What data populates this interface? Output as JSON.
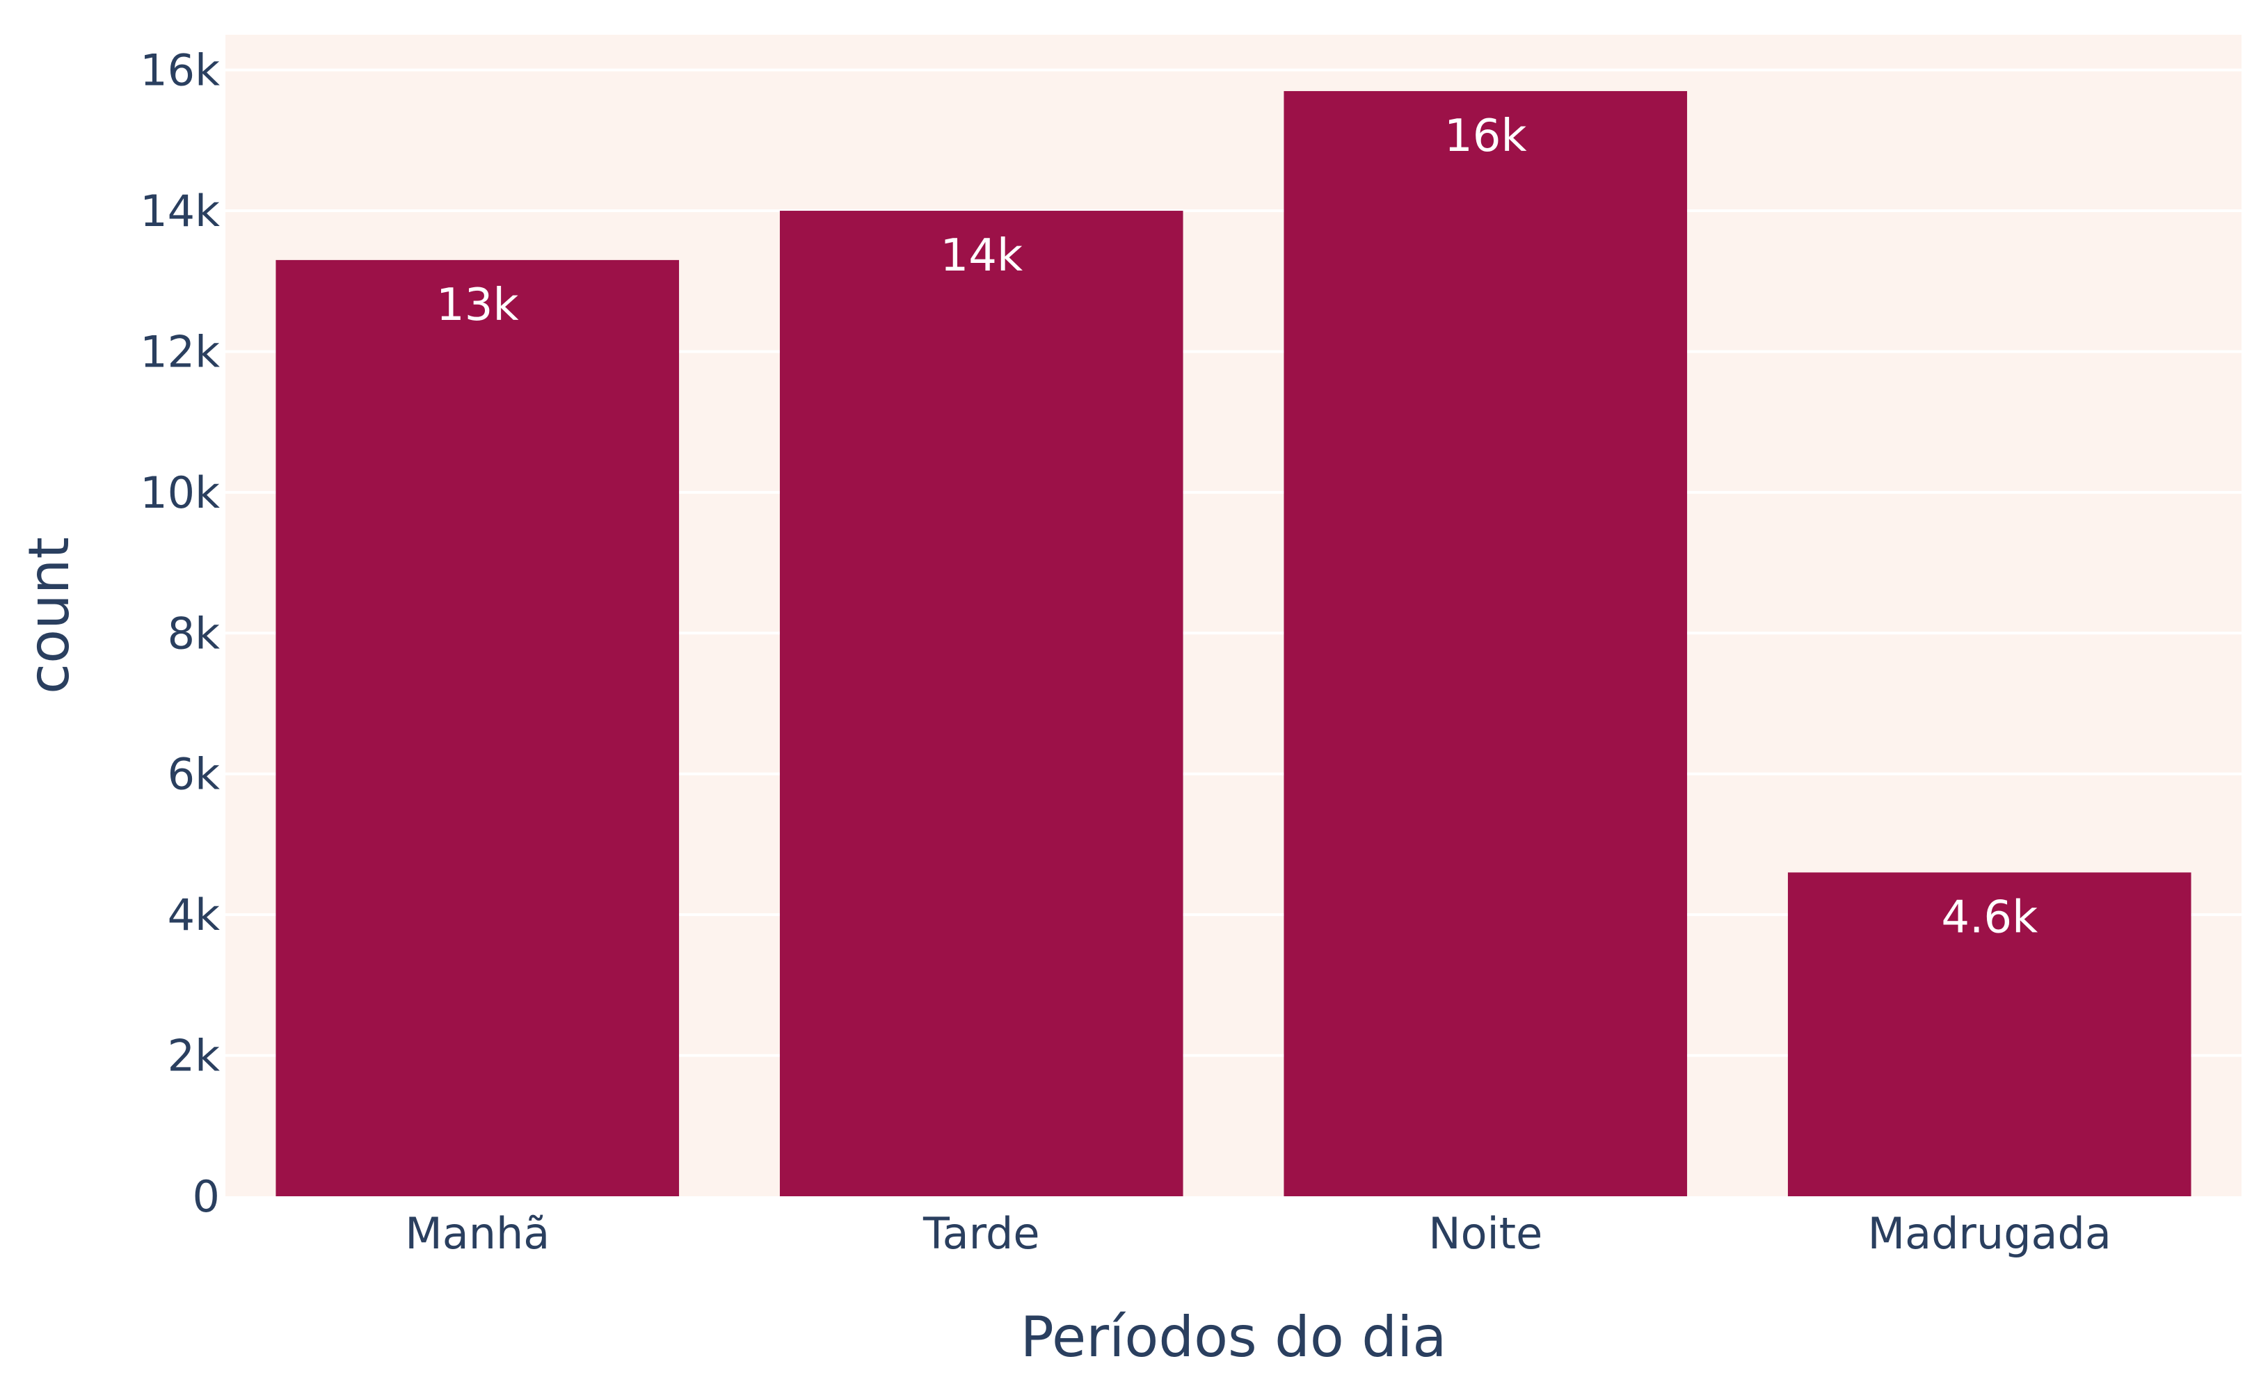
{
  "chart_data": {
    "type": "bar",
    "categories": [
      "Manhã",
      "Tarde",
      "Noite",
      "Madrugada"
    ],
    "values": [
      13300,
      14000,
      15700,
      4600
    ],
    "value_labels": [
      "13k",
      "14k",
      "16k",
      "4.6k"
    ],
    "xlabel": "Períodos do dia",
    "ylabel": "count",
    "ylim": [
      0,
      16500
    ],
    "yticks": [
      0,
      2000,
      4000,
      6000,
      8000,
      10000,
      12000,
      14000,
      16000
    ],
    "ytick_labels": [
      "0",
      "2k",
      "4k",
      "6k",
      "8k",
      "10k",
      "12k",
      "14k",
      "16k"
    ],
    "grid": true,
    "bar_color": "#9c1148",
    "plot_background": "#fdf3ee",
    "gridline_color": "#ffffff",
    "text_color": "#2a3f5f",
    "bar_label_color": "#ffffff"
  }
}
